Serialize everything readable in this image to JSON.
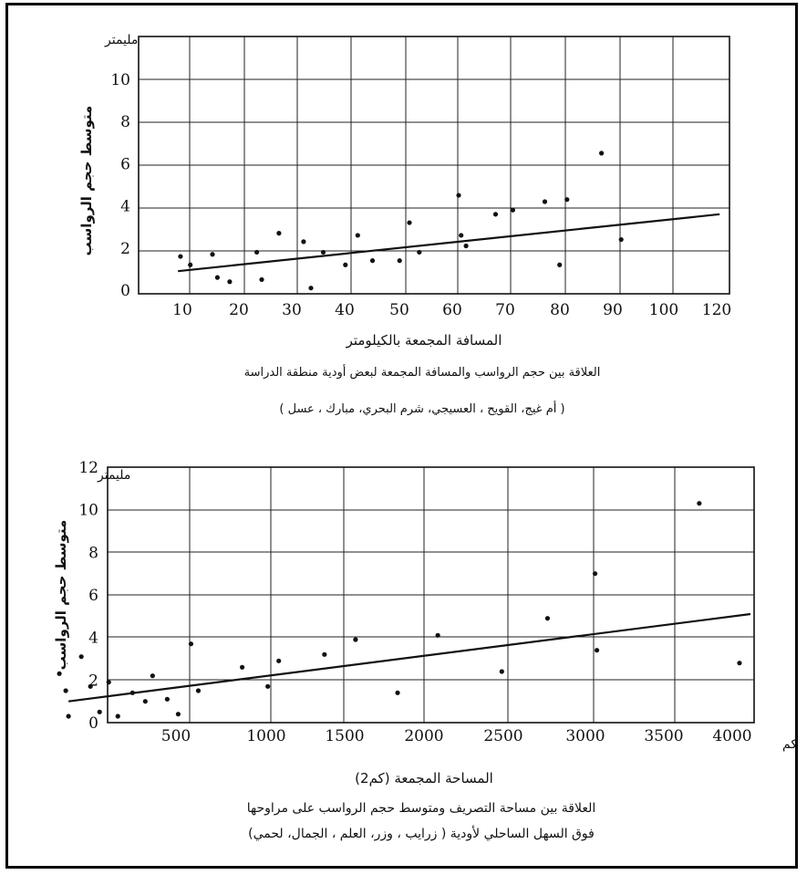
{
  "chart_data": [
    {
      "type": "scatter",
      "unit_label": "مليمتر",
      "ylabel": "متوسط حجم الرواسب",
      "xlabel": "المسافة المجمعة بالكيلومتر",
      "caption_line1": "العلاقة بين حجم الرواسب والمسافة المجمعة لبعض أودية منطقة الدراسة",
      "caption_line2": "( أم غيج، القويح ، العسيجي، شرم البحري، مبارك ، عسل )",
      "xlim": [
        0,
        120
      ],
      "ylim": [
        0,
        12
      ],
      "x_ticks": [
        10,
        20,
        30,
        40,
        50,
        60,
        70,
        80,
        90,
        100,
        120
      ],
      "x_tick_labels": [
        "10",
        "20",
        "30",
        "40",
        "50",
        "60",
        "70",
        "80",
        "90",
        "100",
        "120"
      ],
      "y_ticks": [
        0,
        2,
        4,
        6,
        8,
        10
      ],
      "y_tick_labels": [
        "0",
        "2",
        "4",
        "6",
        "8",
        "10"
      ],
      "grid": true,
      "points": [
        [
          8.5,
          1.6
        ],
        [
          10.5,
          1.2
        ],
        [
          15,
          1.7
        ],
        [
          16,
          0.6
        ],
        [
          18.5,
          0.4
        ],
        [
          24,
          1.8
        ],
        [
          25,
          0.5
        ],
        [
          28.5,
          2.7
        ],
        [
          33.5,
          2.3
        ],
        [
          35,
          0.1
        ],
        [
          37.5,
          1.8
        ],
        [
          42,
          1.2
        ],
        [
          44.5,
          2.6
        ],
        [
          47.5,
          1.4
        ],
        [
          53,
          1.4
        ],
        [
          55,
          3.2
        ],
        [
          57,
          1.8
        ],
        [
          65,
          4.5
        ],
        [
          65.5,
          2.6
        ],
        [
          66.5,
          2.1
        ],
        [
          72.5,
          3.6
        ],
        [
          76,
          3.8
        ],
        [
          82.5,
          4.2
        ],
        [
          85.5,
          1.2
        ],
        [
          87,
          4.3
        ],
        [
          94,
          6.5
        ],
        [
          98,
          2.4
        ]
      ],
      "trendline": [
        [
          8,
          0.9
        ],
        [
          118,
          3.6
        ]
      ]
    },
    {
      "type": "scatter",
      "unit_label": "مليمتر",
      "x_unit_label": "كم",
      "ylabel": "متوسط حجم الرواسب",
      "xlabel": "المساحة المجمعة (كم2)",
      "caption_line1": "العلاقة بين مساحة التصريف ومتوسط حجم الرواسب على مراوحها",
      "caption_line2": "فوق السهل الساحلي لأودية ( زرايب ، وزر، العلم ، الجمال، لحمي)",
      "xlim": [
        150,
        4000
      ],
      "ylim": [
        0,
        12
      ],
      "x_ticks": [
        500,
        1000,
        1500,
        2000,
        2500,
        3000,
        3500,
        4000
      ],
      "x_tick_labels": [
        "500",
        "1000",
        "1500",
        "2000",
        "2500",
        "3000",
        "3500",
        "4000"
      ],
      "y_ticks": [
        0,
        2,
        4,
        6,
        8,
        10,
        12
      ],
      "y_tick_labels": [
        "0",
        "2",
        "4",
        "6",
        "8",
        "10",
        "12"
      ],
      "grid": true,
      "points": [
        [
          200,
          2.3
        ],
        [
          235,
          1.5
        ],
        [
          250,
          0.3
        ],
        [
          320,
          3.1
        ],
        [
          370,
          1.7
        ],
        [
          420,
          0.5
        ],
        [
          470,
          1.9
        ],
        [
          520,
          0.3
        ],
        [
          600,
          1.4
        ],
        [
          670,
          1.0
        ],
        [
          710,
          2.2
        ],
        [
          790,
          1.1
        ],
        [
          850,
          0.4
        ],
        [
          920,
          3.7
        ],
        [
          960,
          1.5
        ],
        [
          1200,
          2.6
        ],
        [
          1340,
          1.7
        ],
        [
          1400,
          2.9
        ],
        [
          1650,
          3.2
        ],
        [
          1820,
          3.9
        ],
        [
          2050,
          1.4
        ],
        [
          2270,
          4.1
        ],
        [
          2620,
          2.4
        ],
        [
          2870,
          4.9
        ],
        [
          3130,
          7.0
        ],
        [
          3140,
          3.4
        ],
        [
          3700,
          10.3
        ],
        [
          3920,
          2.8
        ]
      ],
      "trendline": [
        [
          250,
          1.0
        ],
        [
          3980,
          5.1
        ]
      ]
    }
  ]
}
